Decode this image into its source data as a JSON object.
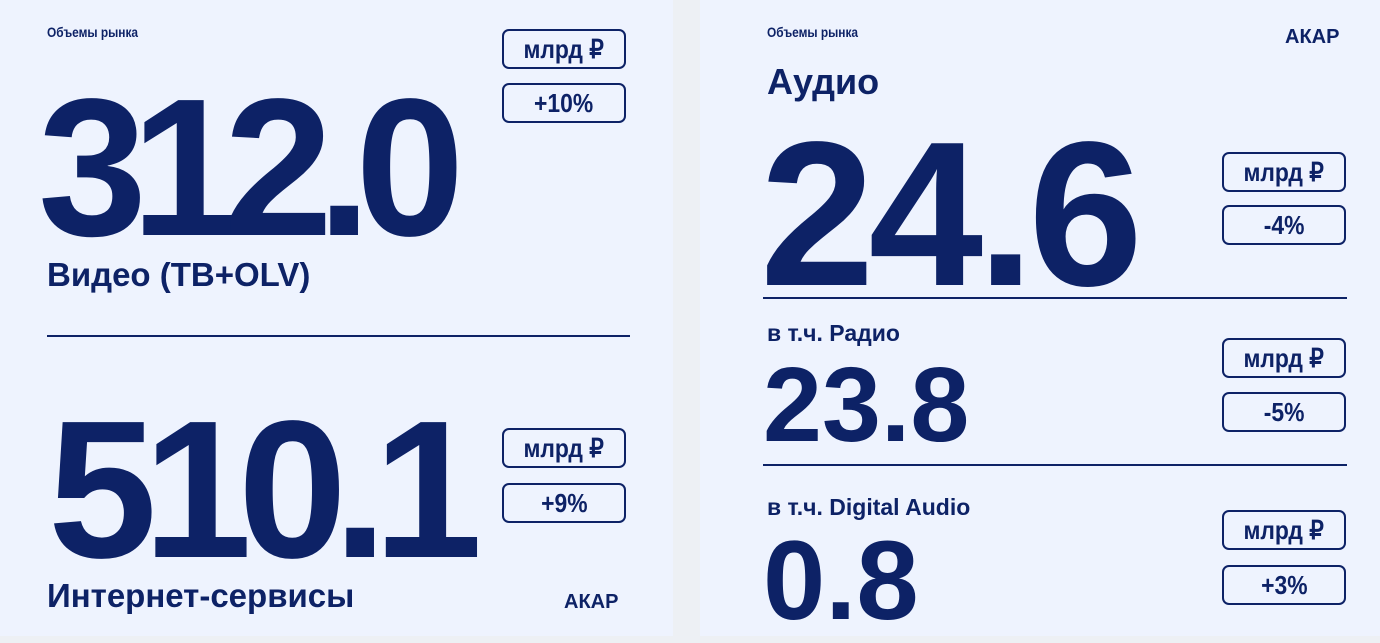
{
  "left": {
    "kicker": "Объемы рынка",
    "video": {
      "value": "312.0",
      "label": "Видео (ТВ+OLV)",
      "unit": "млрд ₽",
      "change": "+10%"
    },
    "internet": {
      "value": "510.1",
      "label": "Интернет-сервисы",
      "unit": "млрд ₽",
      "change": "+9%"
    },
    "logo": "АКАР"
  },
  "right": {
    "kicker": "Объемы рынка",
    "logo": "АКАР",
    "audio": {
      "label": "Аудио",
      "value": "24.6",
      "unit": "млрд ₽",
      "change": "-4%"
    },
    "radio": {
      "label": "в т.ч. Радио",
      "value": "23.8",
      "unit": "млрд ₽",
      "change": "-5%"
    },
    "digital": {
      "label": "в т.ч. Digital Audio",
      "value": "0.8",
      "unit": "млрд ₽",
      "change": "+3%"
    }
  },
  "colors": {
    "text": "#0d2266",
    "background": "#eef3fe"
  }
}
